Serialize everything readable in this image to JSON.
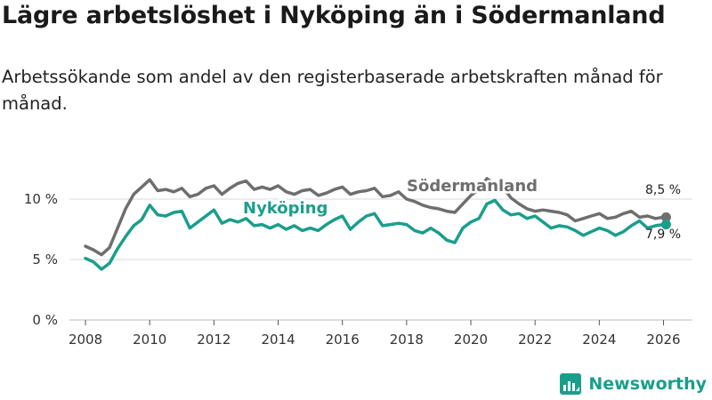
{
  "header": {
    "title": "Lägre arbetslöshet i Nyköping än i Södermanland",
    "subtitle": "Arbetssökande som andel av den registerbaserade arbetskraften månad för månad."
  },
  "brand": {
    "name": "Newsworthy"
  },
  "colors": {
    "nykoping": "#1a9e8c",
    "sodermanland": "#6e6e6e",
    "grid": "#d9d9d9"
  },
  "chart_data": {
    "type": "line",
    "title": "Lägre arbetslöshet i Nyköping än i Södermanland",
    "xlim": [
      2007.5,
      2026.9
    ],
    "ylim": [
      0,
      12.5
    ],
    "y_ticks": [
      {
        "value": 0,
        "label": "0 %"
      },
      {
        "value": 5,
        "label": "5 %"
      },
      {
        "value": 10,
        "label": "10 %"
      }
    ],
    "x_ticks": [
      {
        "value": 2008,
        "label": "2008"
      },
      {
        "value": 2010,
        "label": "2010"
      },
      {
        "value": 2012,
        "label": "2012"
      },
      {
        "value": 2014,
        "label": "2014"
      },
      {
        "value": 2016,
        "label": "2016"
      },
      {
        "value": 2018,
        "label": "2018"
      },
      {
        "value": 2020,
        "label": "2020"
      },
      {
        "value": 2022,
        "label": "2022"
      },
      {
        "value": 2024,
        "label": "2024"
      },
      {
        "value": 2026,
        "label": "2026"
      }
    ],
    "series": [
      {
        "name": "Södermanland",
        "end_label": "8,5 %",
        "end_value": 8.5,
        "x": [
          2008.0,
          2008.25,
          2008.5,
          2008.75,
          2009.0,
          2009.25,
          2009.5,
          2009.75,
          2010.0,
          2010.25,
          2010.5,
          2010.75,
          2011.0,
          2011.25,
          2011.5,
          2011.75,
          2012.0,
          2012.25,
          2012.5,
          2012.75,
          2013.0,
          2013.25,
          2013.5,
          2013.75,
          2014.0,
          2014.25,
          2014.5,
          2014.75,
          2015.0,
          2015.25,
          2015.5,
          2015.75,
          2016.0,
          2016.25,
          2016.5,
          2016.75,
          2017.0,
          2017.25,
          2017.5,
          2017.75,
          2018.0,
          2018.25,
          2018.5,
          2018.75,
          2019.0,
          2019.25,
          2019.5,
          2019.75,
          2020.0,
          2020.25,
          2020.5,
          2020.75,
          2021.0,
          2021.25,
          2021.5,
          2021.75,
          2022.0,
          2022.25,
          2022.5,
          2022.75,
          2023.0,
          2023.25,
          2023.5,
          2023.75,
          2024.0,
          2024.25,
          2024.5,
          2024.75,
          2025.0,
          2025.25,
          2025.5,
          2025.75,
          2026.0,
          2026.08
        ],
        "values": [
          6.1,
          5.8,
          5.4,
          6.0,
          7.6,
          9.2,
          10.4,
          11.0,
          11.6,
          10.7,
          10.8,
          10.6,
          10.9,
          10.2,
          10.4,
          10.9,
          11.1,
          10.4,
          10.9,
          11.3,
          11.5,
          10.8,
          11.0,
          10.8,
          11.1,
          10.6,
          10.4,
          10.7,
          10.8,
          10.3,
          10.5,
          10.8,
          11.0,
          10.4,
          10.6,
          10.7,
          10.9,
          10.2,
          10.3,
          10.6,
          10.0,
          9.8,
          9.5,
          9.3,
          9.2,
          9.0,
          8.9,
          9.6,
          10.3,
          10.8,
          11.7,
          11.2,
          11.0,
          10.1,
          9.6,
          9.2,
          9.0,
          9.1,
          9.0,
          8.9,
          8.7,
          8.2,
          8.4,
          8.6,
          8.8,
          8.4,
          8.5,
          8.8,
          9.0,
          8.5,
          8.6,
          8.4,
          8.5,
          8.5
        ]
      },
      {
        "name": "Nyköping",
        "end_label": "7,9 %",
        "end_value": 7.9,
        "x": [
          2008.0,
          2008.25,
          2008.5,
          2008.75,
          2009.0,
          2009.25,
          2009.5,
          2009.75,
          2010.0,
          2010.25,
          2010.5,
          2010.75,
          2011.0,
          2011.25,
          2011.5,
          2011.75,
          2012.0,
          2012.25,
          2012.5,
          2012.75,
          2013.0,
          2013.25,
          2013.5,
          2013.75,
          2014.0,
          2014.25,
          2014.5,
          2014.75,
          2015.0,
          2015.25,
          2015.5,
          2015.75,
          2016.0,
          2016.25,
          2016.5,
          2016.75,
          2017.0,
          2017.25,
          2017.5,
          2017.75,
          2018.0,
          2018.25,
          2018.5,
          2018.75,
          2019.0,
          2019.25,
          2019.5,
          2019.75,
          2020.0,
          2020.25,
          2020.5,
          2020.75,
          2021.0,
          2021.25,
          2021.5,
          2021.75,
          2022.0,
          2022.25,
          2022.5,
          2022.75,
          2023.0,
          2023.25,
          2023.5,
          2023.75,
          2024.0,
          2024.25,
          2024.5,
          2024.75,
          2025.0,
          2025.25,
          2025.5,
          2025.75,
          2026.0,
          2026.08
        ],
        "values": [
          5.1,
          4.8,
          4.2,
          4.7,
          5.9,
          6.9,
          7.8,
          8.3,
          9.5,
          8.7,
          8.6,
          8.9,
          9.0,
          7.6,
          8.1,
          8.6,
          9.1,
          8.0,
          8.3,
          8.1,
          8.4,
          7.8,
          7.9,
          7.6,
          7.9,
          7.5,
          7.8,
          7.4,
          7.6,
          7.4,
          7.9,
          8.3,
          8.6,
          7.5,
          8.1,
          8.6,
          8.8,
          7.8,
          7.9,
          8.0,
          7.9,
          7.4,
          7.2,
          7.6,
          7.2,
          6.6,
          6.4,
          7.6,
          8.1,
          8.4,
          9.6,
          9.9,
          9.1,
          8.7,
          8.8,
          8.4,
          8.6,
          8.1,
          7.6,
          7.8,
          7.7,
          7.4,
          7.0,
          7.3,
          7.6,
          7.4,
          7.0,
          7.3,
          7.8,
          8.2,
          7.6,
          7.8,
          7.9,
          7.9
        ]
      }
    ]
  }
}
